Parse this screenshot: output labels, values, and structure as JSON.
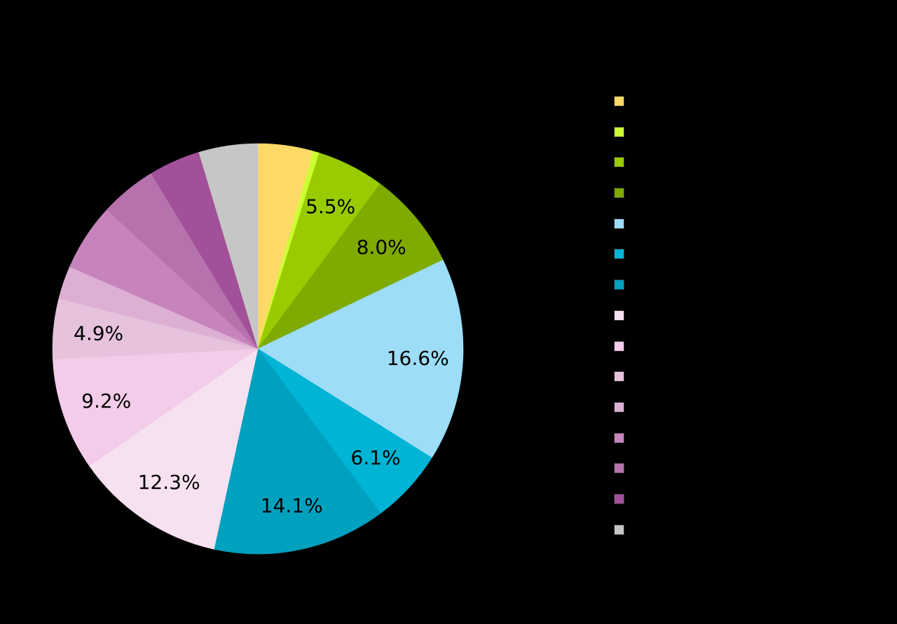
{
  "chart_data": {
    "type": "pie",
    "title": "",
    "start_angle_deg": 0,
    "direction": "clockwise",
    "slices": [
      {
        "value": 4.5,
        "label": "",
        "color": "#FFD966"
      },
      {
        "value": 0.5,
        "label": "",
        "color": "#CCFF33"
      },
      {
        "value": 5.5,
        "label": "5.5%",
        "color": "#99CC00"
      },
      {
        "value": 8.0,
        "label": "8.0%",
        "color": "#7FAA00"
      },
      {
        "value": 16.6,
        "label": "16.6%",
        "color": "#9DDDF7"
      },
      {
        "value": 6.1,
        "label": "6.1%",
        "color": "#00B4D5"
      },
      {
        "value": 14.1,
        "label": "14.1%",
        "color": "#00A0BF"
      },
      {
        "value": 12.3,
        "label": "12.3%",
        "color": "#F6E1F1"
      },
      {
        "value": 9.2,
        "label": "9.2%",
        "color": "#F2CCE8"
      },
      {
        "value": 4.9,
        "label": "4.9%",
        "color": "#E7C2DD"
      },
      {
        "value": 2.7,
        "label": "",
        "color": "#DDB0D3"
      },
      {
        "value": 5.5,
        "label": "",
        "color": "#C784BC"
      },
      {
        "value": 4.6,
        "label": "",
        "color": "#B672AD"
      },
      {
        "value": 4.2,
        "label": "",
        "color": "#A2509A"
      },
      {
        "value": 4.8,
        "label": "",
        "color": "#C6C6C6"
      }
    ],
    "legend": {
      "position": "right",
      "entries": [
        "",
        "",
        "",
        "",
        "",
        "",
        "",
        "",
        "",
        "",
        "",
        "",
        "",
        "",
        ""
      ]
    }
  }
}
